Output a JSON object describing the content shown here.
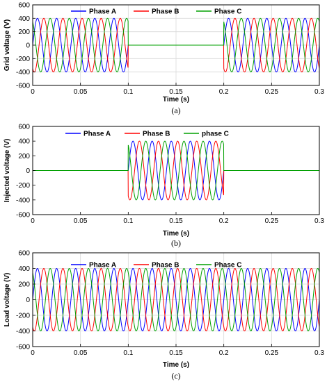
{
  "chart_data": [
    {
      "type": "line",
      "panel_caption": "(a)",
      "xlabel": "Time (s)",
      "ylabel": "Grid voltage (V)",
      "xlim": [
        0,
        0.3
      ],
      "ylim": [
        -600,
        600
      ],
      "xticks": [
        0,
        0.05,
        0.1,
        0.15,
        0.2,
        0.25,
        0.3
      ],
      "yticks": [
        600,
        400,
        200,
        0,
        -200,
        -400,
        -600
      ],
      "xtick_labels": [
        "0",
        "0.05",
        "0.1",
        "0.15",
        "0.2",
        "0.25",
        "0.3"
      ],
      "ytick_labels": [
        "600",
        "400",
        "200",
        "0",
        "-200",
        "-400",
        "-600"
      ],
      "grid": true,
      "legend_position": "top",
      "frequency_hz": 50,
      "amplitude_v": 400,
      "segments": [
        {
          "t_start": 0,
          "t_end": 0.1,
          "amplitude": 400
        },
        {
          "t_start": 0.1,
          "t_end": 0.2,
          "amplitude": 0
        },
        {
          "t_start": 0.2,
          "t_end": 0.3,
          "amplitude": 400
        }
      ],
      "series": [
        {
          "name": "Phase A",
          "color": "#0000ff",
          "phase_deg": 0
        },
        {
          "name": "Phase B",
          "color": "#ff0000",
          "phase_deg": -120
        },
        {
          "name": "Phase C",
          "color": "#00a000",
          "phase_deg": 120
        }
      ]
    },
    {
      "type": "line",
      "panel_caption": "(b)",
      "xlabel": "Time (s)",
      "ylabel": "Injected voltage (V)",
      "xlim": [
        0,
        0.3
      ],
      "ylim": [
        -600,
        600
      ],
      "xticks": [
        0,
        0.05,
        0.1,
        0.15,
        0.2,
        0.25,
        0.3
      ],
      "yticks": [
        600,
        400,
        200,
        0,
        -200,
        -400,
        -600
      ],
      "xtick_labels": [
        "0",
        "0.05",
        "0.1",
        "0.15",
        "0.2",
        "0.25",
        "0.3"
      ],
      "ytick_labels": [
        "600",
        "400",
        "200",
        "0",
        "-200",
        "-400",
        "-600"
      ],
      "grid": false,
      "legend_position": "top-right",
      "frequency_hz": 50,
      "amplitude_v": 400,
      "segments": [
        {
          "t_start": 0,
          "t_end": 0.1,
          "amplitude": 0
        },
        {
          "t_start": 0.1,
          "t_end": 0.2,
          "amplitude": 400
        },
        {
          "t_start": 0.2,
          "t_end": 0.3,
          "amplitude": 0
        }
      ],
      "series": [
        {
          "name": "Phase A",
          "color": "#0000ff",
          "phase_deg": 0
        },
        {
          "name": "Phase B",
          "color": "#ff0000",
          "phase_deg": -120
        },
        {
          "name": "phase C",
          "color": "#00a000",
          "phase_deg": 120
        }
      ]
    },
    {
      "type": "line",
      "panel_caption": "(c)",
      "xlabel": "Time (s)",
      "ylabel": "Load voltage (V)",
      "xlim": [
        0,
        0.3
      ],
      "ylim": [
        -600,
        600
      ],
      "xticks": [
        0,
        0.05,
        0.1,
        0.15,
        0.2,
        0.25,
        0.3
      ],
      "yticks": [
        600,
        400,
        200,
        0,
        -200,
        -400,
        -600
      ],
      "xtick_labels": [
        "0",
        "0.05",
        "0.1",
        "0.15",
        "0.2",
        "0.25",
        "0.3"
      ],
      "ytick_labels": [
        "600",
        "400",
        "200",
        "0",
        "-200",
        "-400",
        "-600"
      ],
      "grid": true,
      "legend_position": "top",
      "frequency_hz": 50,
      "amplitude_v": 400,
      "segments": [
        {
          "t_start": 0,
          "t_end": 0.3,
          "amplitude": 400
        }
      ],
      "series": [
        {
          "name": "Phase A",
          "color": "#0000ff",
          "phase_deg": 0
        },
        {
          "name": "Phase B",
          "color": "#ff0000",
          "phase_deg": -120
        },
        {
          "name": "Phase C",
          "color": "#00a000",
          "phase_deg": 120
        }
      ]
    }
  ]
}
